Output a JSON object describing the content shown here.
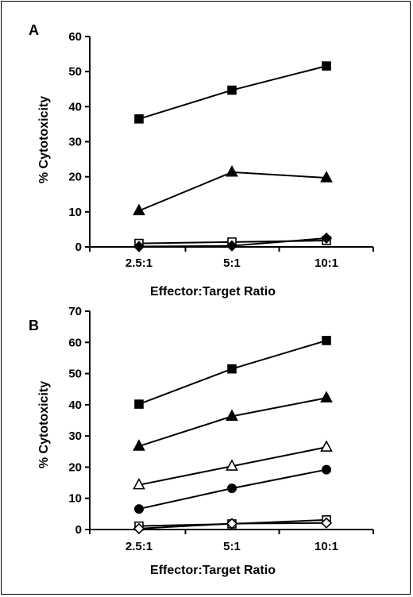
{
  "chart_data": [
    {
      "type": "line",
      "panel_label": "A",
      "categories": [
        "2.5:1",
        "5:1",
        "10:1"
      ],
      "xlabel": "Effector:Target Ratio",
      "ylabel": "% Cytotoxicity",
      "ylim": [
        0,
        60
      ],
      "yticks": [
        0,
        10,
        20,
        30,
        40,
        50,
        60
      ],
      "grid": false,
      "series": [
        {
          "marker": "square-filled",
          "values": [
            36.5,
            44.7,
            51.6
          ]
        },
        {
          "marker": "triangle-filled",
          "values": [
            10.3,
            21.3,
            19.7
          ]
        },
        {
          "marker": "square-open",
          "values": [
            1.0,
            1.4,
            1.8
          ]
        },
        {
          "marker": "diamond-filled",
          "values": [
            0.1,
            0.3,
            2.5
          ]
        }
      ]
    },
    {
      "type": "line",
      "panel_label": "B",
      "categories": [
        "2.5:1",
        "5:1",
        "10:1"
      ],
      "xlabel": "Effector:Target Ratio",
      "ylabel": "% Cytotoxicity",
      "ylim": [
        0,
        70
      ],
      "yticks": [
        0,
        10,
        20,
        30,
        40,
        50,
        60,
        70
      ],
      "grid": false,
      "series": [
        {
          "marker": "square-filled",
          "values": [
            40.2,
            51.5,
            60.6
          ]
        },
        {
          "marker": "triangle-filled",
          "values": [
            26.7,
            36.3,
            42.2
          ]
        },
        {
          "marker": "triangle-open",
          "values": [
            14.3,
            20.3,
            26.4
          ]
        },
        {
          "marker": "circle-filled",
          "values": [
            6.6,
            13.2,
            19.2
          ]
        },
        {
          "marker": "square-open",
          "values": [
            1.1,
            1.8,
            3.1
          ]
        },
        {
          "marker": "diamond-open",
          "values": [
            0.3,
            1.9,
            2.1
          ]
        }
      ]
    }
  ]
}
